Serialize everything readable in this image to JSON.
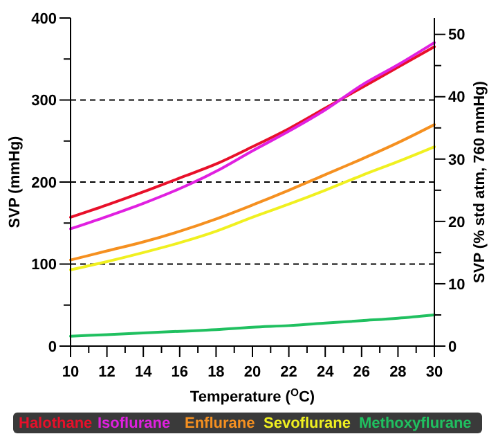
{
  "chart_data": {
    "type": "line",
    "xlabel": "Temperature ($^{O}$C)",
    "ylabel": "SVP (mmHg)",
    "y2label": "SVP (% std atm, 760 mmHg)",
    "x": [
      10,
      12,
      14,
      16,
      18,
      20,
      22,
      24,
      26,
      28,
      30
    ],
    "series": [
      {
        "name": "Halothane",
        "color": "#e8102a",
        "values": [
          157,
          172,
          188,
          205,
          222,
          243,
          265,
          290,
          315,
          340,
          365
        ]
      },
      {
        "name": "Isoflurane",
        "color": "#e020e0",
        "values": [
          143,
          158,
          174,
          192,
          213,
          238,
          262,
          288,
          318,
          343,
          370
        ]
      },
      {
        "name": "Enflurane",
        "color": "#f59020",
        "values": [
          105,
          116,
          127,
          140,
          155,
          172,
          190,
          209,
          228,
          248,
          270
        ]
      },
      {
        "name": "Sevoflurane",
        "color": "#f0f020",
        "values": [
          93,
          103,
          114,
          126,
          140,
          157,
          173,
          190,
          208,
          225,
          243
        ]
      },
      {
        "name": "Methoxyflurane",
        "color": "#20c060",
        "values": [
          12,
          14,
          16,
          18,
          20,
          23,
          25,
          28,
          31,
          34,
          38
        ]
      }
    ],
    "xlim": [
      10,
      30
    ],
    "xticks": [
      10,
      {
        "value": 11,
        "label": null
      },
      12,
      {
        "value": 13,
        "label": null
      },
      14,
      {
        "value": 15,
        "label": null
      },
      16,
      {
        "value": 17,
        "label": null
      },
      18,
      {
        "value": 19,
        "label": null
      },
      20,
      {
        "value": 21,
        "label": null
      },
      22,
      {
        "value": 23,
        "label": null
      },
      24,
      {
        "value": 25,
        "label": null
      },
      26,
      {
        "value": 27,
        "label": null
      },
      28,
      {
        "value": 29,
        "label": null
      },
      30
    ],
    "ylim": [
      0,
      400
    ],
    "yticks": [
      0,
      {
        "value": 50,
        "label": null
      },
      100,
      {
        "value": 150,
        "label": null
      },
      200,
      {
        "value": 250,
        "label": null
      },
      300,
      {
        "value": 350,
        "label": null
      },
      400
    ],
    "y2lim": [
      0,
      52.63
    ],
    "y2ticks": [
      0,
      {
        "value": 5,
        "label": null
      },
      10,
      {
        "value": 15,
        "label": null
      },
      20,
      {
        "value": 25,
        "label": null
      },
      30,
      {
        "value": 35,
        "label": null
      },
      40,
      {
        "value": 45,
        "label": null
      },
      50
    ],
    "grid": "y",
    "legend": "bottom",
    "marker": "none",
    "line_style": "solid"
  }
}
